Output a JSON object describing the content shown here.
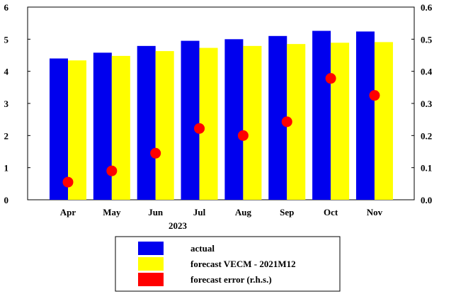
{
  "chart_data": {
    "type": "bar",
    "categories": [
      "Apr",
      "May",
      "Jun",
      "Jul",
      "Aug",
      "Sep",
      "Oct",
      "Nov"
    ],
    "group_label": "2023",
    "series": [
      {
        "name": "actual",
        "kind": "bar",
        "axis": "left",
        "color": "#0000ee",
        "values": [
          4.4,
          4.58,
          4.79,
          4.95,
          5.0,
          5.1,
          5.26,
          5.24
        ]
      },
      {
        "name": "forecast VECM - 2021M12",
        "kind": "bar",
        "axis": "left",
        "color": "#ffff00",
        "values": [
          4.34,
          4.48,
          4.63,
          4.73,
          4.79,
          4.85,
          4.89,
          4.91
        ]
      },
      {
        "name": "forecast error (r.h.s.)",
        "kind": "scatter",
        "axis": "right",
        "color": "#ff0000",
        "values": [
          0.055,
          0.09,
          0.145,
          0.222,
          0.2,
          0.243,
          0.378,
          0.325
        ]
      }
    ],
    "ylim_left": [
      0,
      6
    ],
    "ylim_right": [
      0,
      0.6
    ],
    "yticks_left": [
      "0",
      "1",
      "2",
      "3",
      "4",
      "5",
      "6"
    ],
    "yticks_right": [
      "0.0",
      "0.1",
      "0.2",
      "0.3",
      "0.4",
      "0.5",
      "0.6"
    ],
    "grid": false,
    "legend_position": "bottom-center"
  }
}
